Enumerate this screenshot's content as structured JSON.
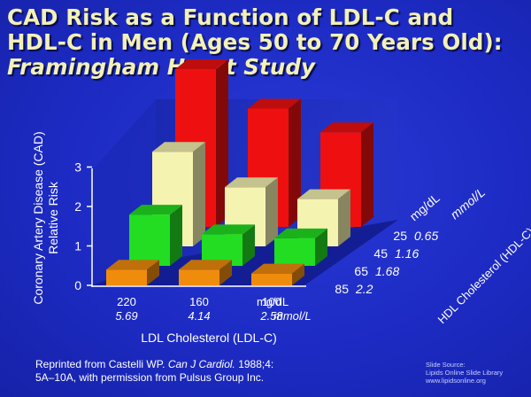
{
  "title": {
    "line1": "CAD Risk as a Function of LDL-C and",
    "line2": "HDL-C in Men (Ages 50 to 70 Years Old):",
    "line3": "Framingham Heart Study"
  },
  "chart_data": {
    "type": "bar",
    "title": "CAD Risk as a Function of LDL-C and HDL-C in Men (Ages 50 to 70 Years Old): Framingham Heart Study",
    "ylabel": "Coronary Artery Disease (CAD) Relative Risk",
    "ylabel_line1": "Coronary Artery Disease (CAD)",
    "ylabel_line2": "Relative Risk",
    "xlabel": "LDL Cholesterol (LDL-C)",
    "zlabel": "HDL Cholesterol (HDL-C)",
    "ylim": [
      0,
      3
    ],
    "yticks": [
      "0",
      "1",
      "2",
      "3"
    ],
    "x_categories": [
      {
        "mgdl": "220",
        "mmol": "5.69"
      },
      {
        "mgdl": "160",
        "mmol": "4.14"
      },
      {
        "mgdl": "100",
        "mmol": "2.58"
      }
    ],
    "x_unit_mgdl": "mg/dL",
    "x_unit_mmol": "mmol/L",
    "z_unit_mgdl": "mg/dL",
    "z_unit_mmol": "mmol/L",
    "z_categories": [
      {
        "mgdl": "25",
        "mmol": "0.65",
        "color": "#ee1010"
      },
      {
        "mgdl": "45",
        "mmol": "1.16",
        "color": "#f5f3b0"
      },
      {
        "mgdl": "65",
        "mmol": "1.68",
        "color": "#22dd22"
      },
      {
        "mgdl": "85",
        "mmol": "2.2",
        "color": "#f08c0c"
      }
    ],
    "values": [
      [
        4.0,
        3.0,
        2.4
      ],
      [
        2.4,
        1.5,
        1.2
      ],
      [
        1.3,
        0.8,
        0.7
      ],
      [
        0.4,
        0.4,
        0.3
      ]
    ],
    "grid": false
  },
  "reference": {
    "line1_pre": "Reprinted from Castelli WP. ",
    "journal": "Can J Cardiol.",
    "line1_post": " 1988;4:",
    "line2": "5A–10A, with permission from Pulsus Group Inc."
  },
  "source": {
    "line1": "Slide Source:",
    "line2": "Lipids Online Slide Library",
    "line3": "www.lipidsonline.org"
  }
}
